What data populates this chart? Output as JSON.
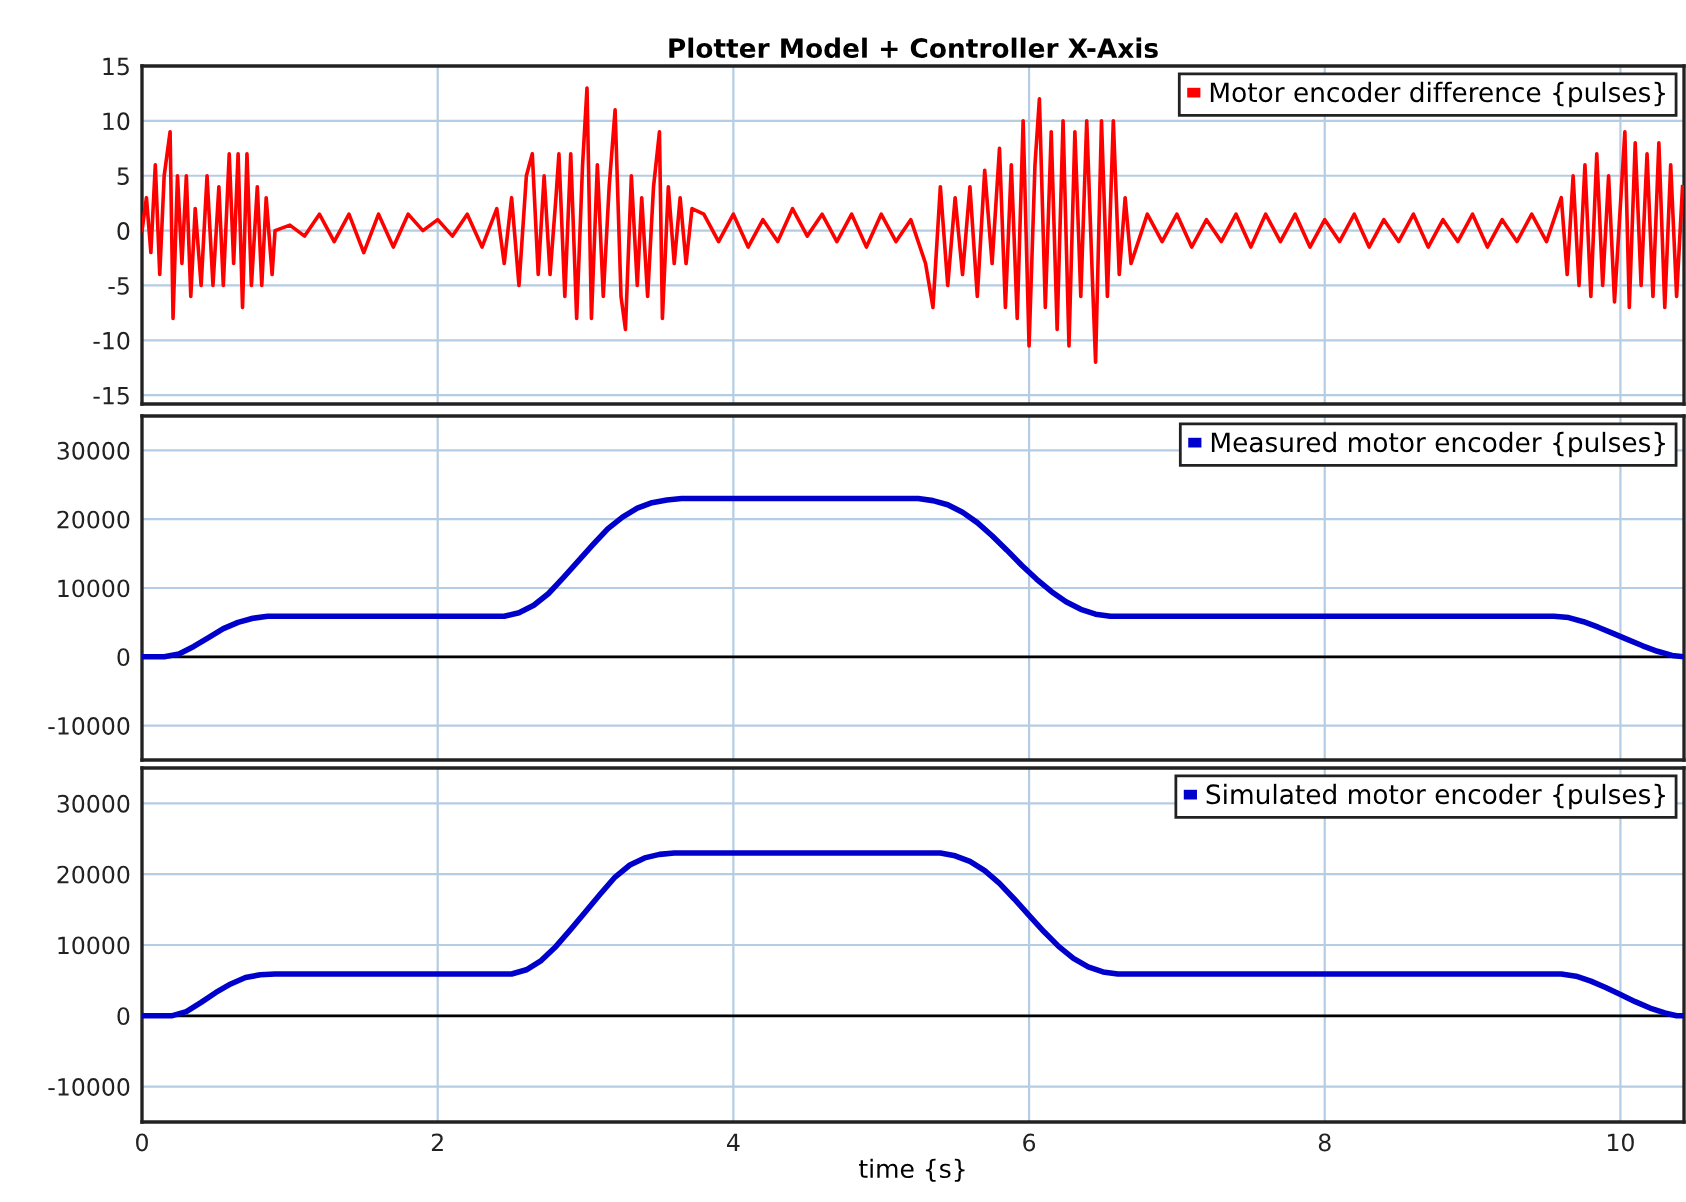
{
  "chart_data": [
    {
      "type": "line",
      "title": "Plotter Model + Controller X-Axis",
      "xlim": [
        0,
        10.43
      ],
      "xticks": [
        0,
        2,
        4,
        6,
        8,
        10
      ],
      "ylim": [
        -15.8,
        15
      ],
      "yticks": [
        -15,
        -10,
        -5,
        0,
        5,
        10,
        15
      ],
      "grid": true,
      "legend": "top right",
      "tick_labels": "y",
      "line_style": "solid",
      "series": [
        {
          "name": "Motor encoder difference {pulses}",
          "color": "#ff0000",
          "x": [
            0.0,
            0.03,
            0.06,
            0.09,
            0.12,
            0.15,
            0.19,
            0.21,
            0.24,
            0.27,
            0.3,
            0.33,
            0.36,
            0.4,
            0.44,
            0.48,
            0.52,
            0.55,
            0.59,
            0.62,
            0.65,
            0.68,
            0.71,
            0.74,
            0.78,
            0.81,
            0.84,
            0.88,
            0.9,
            1.0,
            1.1,
            1.2,
            1.3,
            1.4,
            1.5,
            1.6,
            1.7,
            1.8,
            1.9,
            2.0,
            2.1,
            2.2,
            2.3,
            2.4,
            2.45,
            2.5,
            2.55,
            2.6,
            2.64,
            2.68,
            2.72,
            2.76,
            2.8,
            2.82,
            2.86,
            2.9,
            2.94,
            2.98,
            3.01,
            3.04,
            3.08,
            3.12,
            3.16,
            3.2,
            3.24,
            3.27,
            3.31,
            3.35,
            3.38,
            3.42,
            3.46,
            3.5,
            3.52,
            3.56,
            3.6,
            3.64,
            3.68,
            3.72,
            3.8,
            3.9,
            4.0,
            4.1,
            4.2,
            4.3,
            4.4,
            4.5,
            4.6,
            4.7,
            4.8,
            4.9,
            5.0,
            5.1,
            5.2,
            5.3,
            5.35,
            5.4,
            5.45,
            5.5,
            5.55,
            5.6,
            5.65,
            5.7,
            5.75,
            5.8,
            5.84,
            5.88,
            5.92,
            5.96,
            6.0,
            6.04,
            6.07,
            6.11,
            6.15,
            6.19,
            6.23,
            6.27,
            6.31,
            6.35,
            6.39,
            6.43,
            6.45,
            6.49,
            6.53,
            6.57,
            6.61,
            6.65,
            6.69,
            6.8,
            6.9,
            7.0,
            7.1,
            7.2,
            7.3,
            7.4,
            7.5,
            7.6,
            7.7,
            7.8,
            7.9,
            8.0,
            8.1,
            8.2,
            8.3,
            8.4,
            8.5,
            8.6,
            8.7,
            8.8,
            8.9,
            9.0,
            9.1,
            9.2,
            9.3,
            9.4,
            9.5,
            9.6,
            9.64,
            9.68,
            9.72,
            9.76,
            9.8,
            9.84,
            9.88,
            9.92,
            9.96,
            10.03,
            10.06,
            10.1,
            10.14,
            10.18,
            10.22,
            10.26,
            10.3,
            10.34,
            10.38,
            10.42
          ],
          "values": [
            0,
            3,
            -2,
            6,
            -4,
            5,
            9,
            -8,
            5,
            -3,
            5,
            -6,
            2,
            -5,
            5,
            -5,
            4,
            -5,
            7,
            -3,
            7,
            -7,
            7,
            -5,
            4,
            -5,
            3,
            -4,
            0,
            0.5,
            -0.5,
            1.5,
            -1,
            1.5,
            -2,
            1.5,
            -1.5,
            1.5,
            0,
            1,
            -0.5,
            1.5,
            -1.5,
            2,
            -3,
            3,
            -5,
            5,
            7,
            -4,
            5,
            -4,
            3,
            7,
            -6,
            7,
            -8,
            6,
            13,
            -8,
            6,
            -6,
            4,
            11,
            -6,
            -9,
            5,
            -5,
            3,
            -6,
            4,
            9,
            -8,
            4,
            -3,
            3,
            -3,
            2,
            1.5,
            -1,
            1.5,
            -1.5,
            1,
            -1,
            2,
            -0.5,
            1.5,
            -1,
            1.5,
            -1.5,
            1.5,
            -1,
            1,
            -3,
            -7,
            4,
            -5,
            3,
            -4,
            4,
            -6,
            5.5,
            -3,
            7.5,
            -7,
            6,
            -8,
            10,
            -10.5,
            6,
            12,
            -7,
            9,
            -9,
            10,
            -10.5,
            9,
            -6,
            10,
            -5,
            -12,
            10,
            -6,
            10,
            -4,
            3,
            -3,
            1.5,
            -1,
            1.5,
            -1.5,
            1,
            -1,
            1.5,
            -1.5,
            1.5,
            -1,
            1.5,
            -1.5,
            1,
            -1,
            1.5,
            -1.5,
            1,
            -1,
            1.5,
            -1.5,
            1,
            -1,
            1.5,
            -1.5,
            1,
            -1,
            1.5,
            -1,
            3,
            -4,
            5,
            -5,
            6,
            -6,
            7,
            -5,
            5,
            -6.5,
            9,
            -7,
            8,
            -5,
            7,
            -6,
            8,
            -7,
            6,
            -6,
            4
          ]
        }
      ]
    },
    {
      "type": "line",
      "xlim": [
        0,
        10.43
      ],
      "xticks": [
        0,
        2,
        4,
        6,
        8,
        10
      ],
      "ylim": [
        -15000,
        35000
      ],
      "yticks": [
        -10000,
        0,
        10000,
        20000,
        30000
      ],
      "grid": true,
      "legend": "top right",
      "tick_labels": "y",
      "line_style": "solid",
      "ref_lines": [
        {
          "axis": "y",
          "value": 0,
          "color": "#000000"
        }
      ],
      "series": [
        {
          "name": "Measured motor encoder {pulses}",
          "color": "#0000cc",
          "x": [
            0,
            0.15,
            0.25,
            0.35,
            0.45,
            0.55,
            0.65,
            0.75,
            0.85,
            2.45,
            2.55,
            2.65,
            2.75,
            2.85,
            2.95,
            3.05,
            3.15,
            3.25,
            3.35,
            3.45,
            3.55,
            3.65,
            5.25,
            5.35,
            5.45,
            5.55,
            5.65,
            5.75,
            5.85,
            5.95,
            6.05,
            6.15,
            6.25,
            6.35,
            6.45,
            6.55,
            9.55,
            9.65,
            9.75,
            9.85,
            9.95,
            10.05,
            10.15,
            10.25,
            10.35,
            10.43
          ],
          "values": [
            0,
            0,
            400,
            1500,
            2800,
            4100,
            5000,
            5600,
            5900,
            5900,
            6400,
            7500,
            9200,
            11500,
            13900,
            16300,
            18600,
            20300,
            21600,
            22400,
            22800,
            23000,
            23000,
            22700,
            22100,
            21000,
            19500,
            17600,
            15500,
            13300,
            11300,
            9500,
            8000,
            6900,
            6200,
            5900,
            5900,
            5700,
            5100,
            4300,
            3400,
            2500,
            1600,
            800,
            200,
            0
          ]
        }
      ]
    },
    {
      "type": "line",
      "xlabel": "time {s}",
      "xlim": [
        0,
        10.43
      ],
      "xticks": [
        0,
        2,
        4,
        6,
        8,
        10
      ],
      "ylim": [
        -15000,
        35000
      ],
      "yticks": [
        -10000,
        0,
        10000,
        20000,
        30000
      ],
      "grid": true,
      "legend": "top right",
      "line_style": "solid",
      "ref_lines": [
        {
          "axis": "y",
          "value": 0,
          "color": "#000000"
        }
      ],
      "series": [
        {
          "name": "Simulated motor encoder {pulses}",
          "color": "#0000cc",
          "x": [
            0,
            0.2,
            0.3,
            0.4,
            0.5,
            0.6,
            0.7,
            0.8,
            0.9,
            2.5,
            2.6,
            2.7,
            2.8,
            2.9,
            3.0,
            3.1,
            3.2,
            3.3,
            3.4,
            3.5,
            3.6,
            5.4,
            5.5,
            5.6,
            5.7,
            5.8,
            5.9,
            6.0,
            6.1,
            6.2,
            6.3,
            6.4,
            6.5,
            6.6,
            9.6,
            9.7,
            9.8,
            9.9,
            10.0,
            10.1,
            10.2,
            10.3,
            10.38,
            10.43
          ],
          "values": [
            0,
            0,
            600,
            1900,
            3300,
            4500,
            5400,
            5800,
            5900,
            5900,
            6500,
            7800,
            9800,
            12200,
            14700,
            17200,
            19600,
            21300,
            22300,
            22800,
            23000,
            23000,
            22600,
            21800,
            20500,
            18700,
            16500,
            14200,
            11900,
            9800,
            8100,
            6900,
            6200,
            5900,
            5900,
            5600,
            4900,
            4000,
            3000,
            2000,
            1100,
            400,
            0,
            0
          ]
        }
      ]
    }
  ]
}
